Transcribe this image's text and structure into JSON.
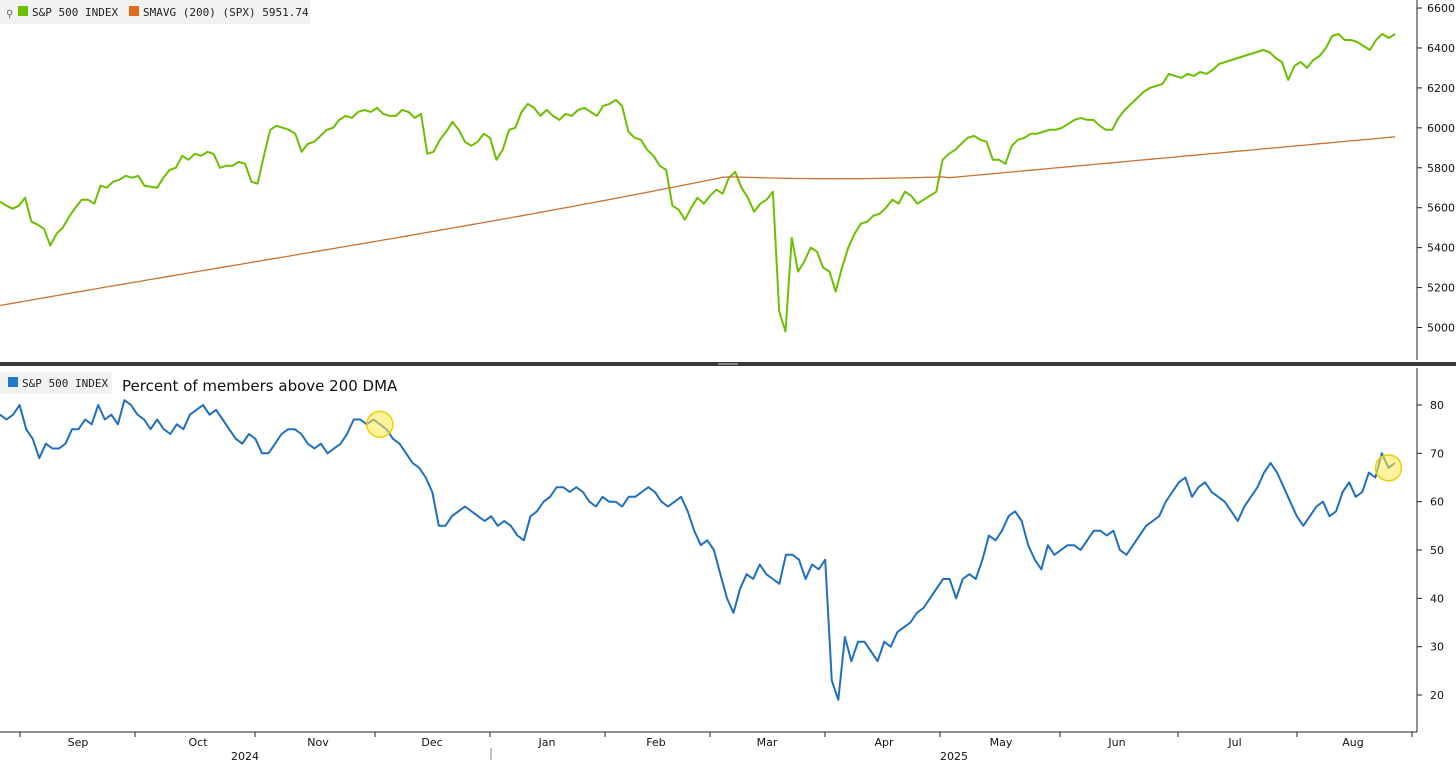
{
  "chart_data": [
    {
      "type": "line",
      "panel": "top",
      "legend": [
        {
          "label": "S&P 500 INDEX",
          "color": "#6cbf00"
        },
        {
          "label": "SMAVG (200) (SPX) 5951.74",
          "color": "#e06b1f"
        }
      ],
      "ylim": [
        4850,
        6600
      ],
      "yticks": [
        5000,
        5200,
        5400,
        5600,
        5800,
        6000,
        6200,
        6400,
        6600
      ],
      "series": [
        {
          "name": "S&P 500 INDEX",
          "color": "#6cbf00",
          "values": [
            5630,
            5610,
            5595,
            5610,
            5650,
            5530,
            5515,
            5495,
            5410,
            5470,
            5500,
            5555,
            5600,
            5640,
            5640,
            5620,
            5710,
            5700,
            5730,
            5740,
            5760,
            5750,
            5760,
            5710,
            5705,
            5700,
            5750,
            5790,
            5800,
            5860,
            5840,
            5870,
            5860,
            5880,
            5870,
            5800,
            5810,
            5810,
            5830,
            5820,
            5730,
            5720,
            5860,
            5990,
            6010,
            6000,
            5990,
            5970,
            5880,
            5920,
            5930,
            5960,
            5990,
            6000,
            6040,
            6060,
            6050,
            6080,
            6090,
            6080,
            6100,
            6070,
            6060,
            6060,
            6090,
            6080,
            6050,
            6070,
            5870,
            5880,
            5940,
            5980,
            6030,
            5990,
            5930,
            5910,
            5930,
            5970,
            5950,
            5840,
            5890,
            5990,
            6000,
            6080,
            6120,
            6100,
            6060,
            6090,
            6060,
            6040,
            6070,
            6060,
            6090,
            6100,
            6080,
            6060,
            6110,
            6120,
            6140,
            6110,
            5980,
            5950,
            5940,
            5890,
            5860,
            5810,
            5790,
            5610,
            5590,
            5540,
            5600,
            5650,
            5620,
            5660,
            5690,
            5670,
            5750,
            5780,
            5700,
            5650,
            5580,
            5620,
            5640,
            5680,
            5080,
            4980,
            5450,
            5280,
            5330,
            5400,
            5380,
            5300,
            5280,
            5180,
            5300,
            5400,
            5470,
            5520,
            5530,
            5560,
            5570,
            5600,
            5640,
            5620,
            5680,
            5660,
            5620,
            5640,
            5660,
            5680,
            5840,
            5870,
            5890,
            5920,
            5950,
            5960,
            5940,
            5930,
            5840,
            5840,
            5820,
            5910,
            5940,
            5950,
            5970,
            5970,
            5980,
            5990,
            5990,
            6000,
            6020,
            6040,
            6050,
            6040,
            6040,
            6010,
            5990,
            5990,
            6050,
            6090,
            6120,
            6150,
            6180,
            6200,
            6210,
            6220,
            6270,
            6260,
            6250,
            6270,
            6260,
            6280,
            6270,
            6290,
            6320,
            6330,
            6340,
            6350,
            6360,
            6370,
            6380,
            6390,
            6380,
            6350,
            6330,
            6240,
            6310,
            6330,
            6300,
            6340,
            6360,
            6400,
            6460,
            6470,
            6440,
            6440,
            6430,
            6410,
            6390,
            6440,
            6470,
            6450,
            6470
          ]
        },
        {
          "name": "SMAVG (200) (SPX)",
          "color": "#c87333",
          "start": 5110,
          "end": 5955,
          "peak_at_mar": 5755
        }
      ]
    },
    {
      "type": "line",
      "panel": "bottom",
      "legend": [
        {
          "label": "S&P 500 INDEX",
          "color": "#1f77d0"
        }
      ],
      "annotation": "Percent of members above 200 DMA",
      "ylim": [
        12,
        87
      ],
      "yticks": [
        20,
        30,
        40,
        50,
        60,
        70,
        80
      ],
      "series": [
        {
          "name": "S&P 500 INDEX",
          "color": "#1f6fc0",
          "values": [
            78,
            77,
            78,
            80,
            75,
            73,
            69,
            72,
            71,
            71,
            72,
            75,
            75,
            77,
            76,
            80,
            77,
            78,
            76,
            81,
            80,
            78,
            77,
            75,
            77,
            75,
            74,
            76,
            75,
            78,
            79,
            80,
            78,
            79,
            77,
            75,
            73,
            72,
            74,
            73,
            70,
            70,
            72,
            74,
            75,
            75,
            74,
            72,
            71,
            72,
            70,
            71,
            72,
            74,
            77,
            77,
            76,
            77,
            76,
            75,
            73,
            72,
            70,
            68,
            67,
            65,
            62,
            55,
            55,
            57,
            58,
            59,
            58,
            57,
            56,
            57,
            55,
            56,
            55,
            53,
            52,
            57,
            58,
            60,
            61,
            63,
            63,
            62,
            63,
            62,
            60,
            59,
            61,
            60,
            60,
            59,
            61,
            61,
            62,
            63,
            62,
            60,
            59,
            60,
            61,
            58,
            54,
            51,
            52,
            50,
            45,
            40,
            37,
            42,
            45,
            44,
            47,
            45,
            44,
            43,
            49,
            49,
            48,
            44,
            47,
            46,
            48,
            23,
            19,
            32,
            27,
            31,
            31,
            29,
            27,
            31,
            30,
            33,
            34,
            35,
            37,
            38,
            40,
            42,
            44,
            44,
            40,
            44,
            45,
            44,
            48,
            53,
            52,
            54,
            57,
            58,
            56,
            51,
            48,
            46,
            51,
            49,
            50,
            51,
            51,
            50,
            52,
            54,
            54,
            53,
            54,
            50,
            49,
            51,
            53,
            55,
            56,
            57,
            60,
            62,
            64,
            65,
            61,
            63,
            64,
            62,
            61,
            60,
            58,
            56,
            59,
            61,
            63,
            66,
            68,
            66,
            63,
            60,
            57,
            55,
            57,
            59,
            60,
            57,
            58,
            62,
            64,
            61,
            62,
            66,
            65,
            70,
            67,
            68
          ]
        }
      ]
    }
  ],
  "x_axis": {
    "months": [
      "Sep",
      "Oct",
      "Nov",
      "Dec",
      "Jan",
      "Feb",
      "Mar",
      "Apr",
      "May",
      "Jun",
      "Jul",
      "Aug"
    ],
    "years": [
      "2024",
      "2025"
    ]
  },
  "highlights": [
    {
      "panel": "bottom",
      "index": 58,
      "color": "#ffe94d"
    },
    {
      "panel": "bottom",
      "index": 212,
      "color": "#ffe94d"
    }
  ]
}
